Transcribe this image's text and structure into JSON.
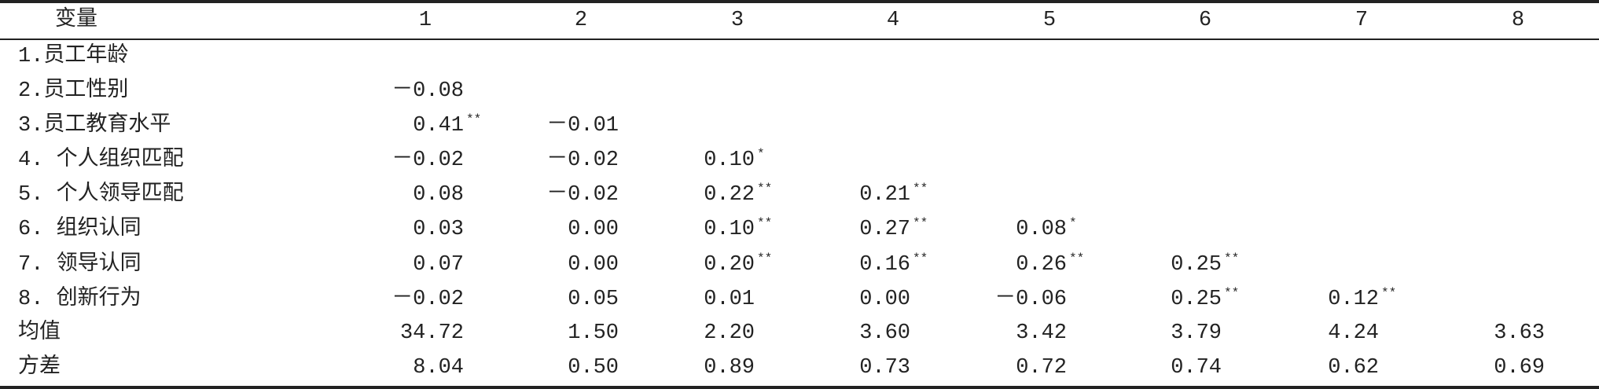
{
  "table": {
    "header": [
      "变量",
      "1",
      "2",
      "3",
      "4",
      "5",
      "6",
      "7",
      "8"
    ],
    "rows": [
      {
        "label": "1.员工年龄",
        "cells": []
      },
      {
        "label": "2.员工性别",
        "cells": [
          {
            "v": "－0.08"
          }
        ]
      },
      {
        "label": "3.员工教育水平",
        "cells": [
          {
            "v": "0.41",
            "sig": "**"
          },
          {
            "v": "－0.01"
          }
        ]
      },
      {
        "label": "4. 个人组织匹配",
        "cells": [
          {
            "v": "－0.02"
          },
          {
            "v": "－0.02"
          },
          {
            "v": "0.10",
            "sig": "*"
          }
        ]
      },
      {
        "label": "5. 个人领导匹配",
        "cells": [
          {
            "v": "0.08"
          },
          {
            "v": "－0.02"
          },
          {
            "v": "0.22",
            "sig": "**"
          },
          {
            "v": "0.21",
            "sig": "**"
          }
        ]
      },
      {
        "label": "6. 组织认同",
        "cells": [
          {
            "v": "0.03"
          },
          {
            "v": "0.00"
          },
          {
            "v": "0.10",
            "sig": "**"
          },
          {
            "v": "0.27",
            "sig": "**"
          },
          {
            "v": "0.08",
            "sig": "*"
          }
        ]
      },
      {
        "label": "7. 领导认同",
        "cells": [
          {
            "v": "0.07"
          },
          {
            "v": "0.00"
          },
          {
            "v": "0.20",
            "sig": "**"
          },
          {
            "v": "0.16",
            "sig": "**"
          },
          {
            "v": "0.26",
            "sig": "**"
          },
          {
            "v": "0.25",
            "sig": "**"
          }
        ]
      },
      {
        "label": "8. 创新行为",
        "cells": [
          {
            "v": "－0.02"
          },
          {
            "v": "0.05"
          },
          {
            "v": "0.01"
          },
          {
            "v": "0.00"
          },
          {
            "v": "－0.06"
          },
          {
            "v": "0.25",
            "sig": "**"
          },
          {
            "v": "0.12",
            "sig": "**"
          }
        ]
      },
      {
        "label": "均值",
        "cells": [
          {
            "v": "34.72"
          },
          {
            "v": "1.50"
          },
          {
            "v": "2.20"
          },
          {
            "v": "3.60"
          },
          {
            "v": "3.42"
          },
          {
            "v": "3.79"
          },
          {
            "v": "4.24"
          },
          {
            "v": "3.63"
          }
        ]
      },
      {
        "label": "方差",
        "cells": [
          {
            "v": "8.04"
          },
          {
            "v": "0.50"
          },
          {
            "v": "0.89"
          },
          {
            "v": "0.73"
          },
          {
            "v": "0.72"
          },
          {
            "v": "0.74"
          },
          {
            "v": "0.62"
          },
          {
            "v": "0.69"
          }
        ]
      }
    ]
  }
}
